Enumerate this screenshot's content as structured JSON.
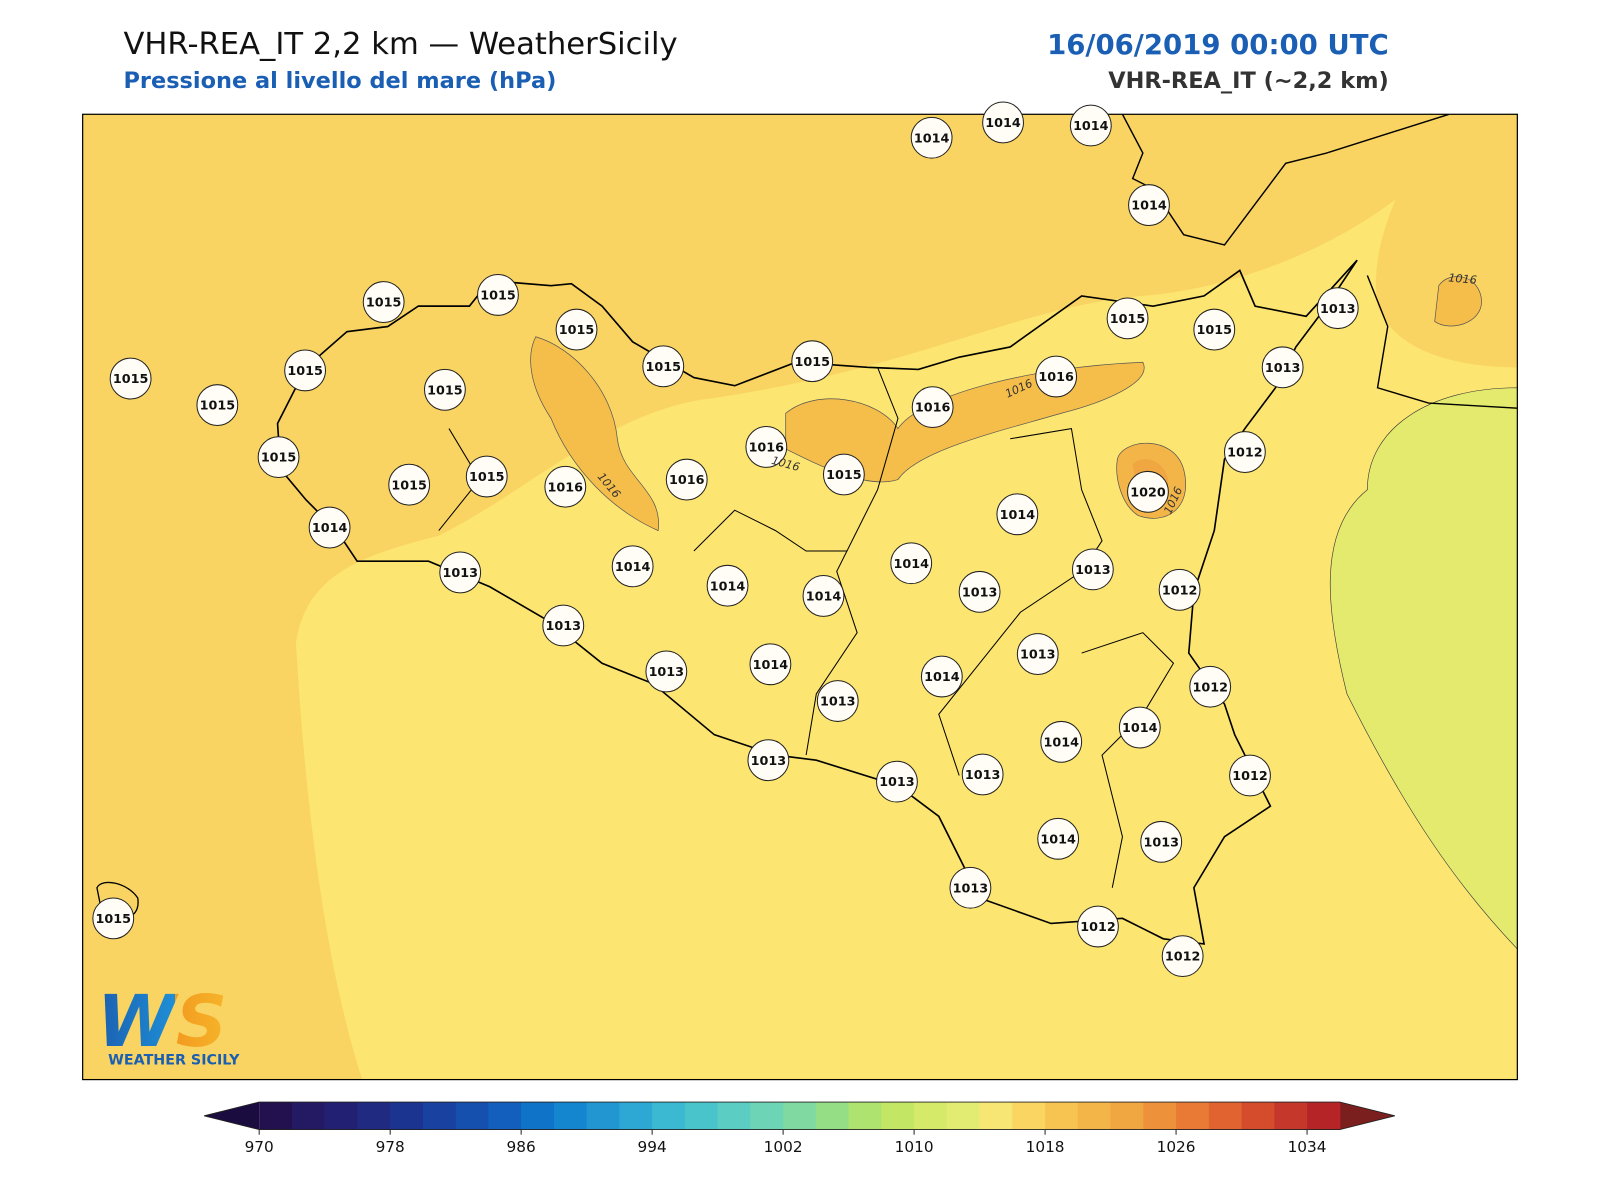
{
  "header": {
    "title": "VHR-REA_IT 2,2 km — WeatherSicily",
    "subtitle": "Pressione al livello del mare (hPa)",
    "date": "16/06/2019 00:00 UTC",
    "model": "VHR-REA_IT (~2,2 km)"
  },
  "stations": [
    1014,
    1014,
    1014,
    1014,
    1015,
    1015,
    1015,
    1015,
    1015,
    1015,
    1015,
    1013,
    1013,
    1015,
    1015,
    1015,
    1015,
    1015,
    1015,
    1015,
    1016,
    1016,
    1016,
    1015,
    1016,
    1016,
    1012,
    1020,
    1014,
    1014,
    1013,
    1014,
    1014,
    1014,
    1014,
    1013,
    1013,
    1012,
    1013,
    1013,
    1014,
    1013,
    1014,
    1013,
    1012,
    1014,
    1014,
    1012,
    1013,
    1013,
    1013,
    1014,
    1013,
    1013,
    1012,
    1012,
    1015
  ],
  "contour_labels": [
    "1016",
    "1016",
    "1016",
    "1016",
    "1016"
  ],
  "logo": {
    "mark": "WS",
    "text": "WEATHER SICILY"
  },
  "colorbar": {
    "range": [
      970,
      1036
    ],
    "ticks": [
      970,
      978,
      986,
      994,
      1002,
      1010,
      1018,
      1026,
      1034
    ],
    "colors": [
      "#23104f",
      "#241a63",
      "#222073",
      "#1f2a80",
      "#1b3490",
      "#1841a0",
      "#1550ae",
      "#125fbe",
      "#0f73c8",
      "#1486cf",
      "#2196d1",
      "#2da8d4",
      "#3bb9d2",
      "#4ac4cb",
      "#5bcdc2",
      "#6dd4b5",
      "#80d9a0",
      "#96de86",
      "#aee36f",
      "#c3e665",
      "#d6ea6a",
      "#e3ec72",
      "#f8e674",
      "#fbd561",
      "#f7c451",
      "#f3b548",
      "#f0a641",
      "#ed913b",
      "#e87a35",
      "#e1632f",
      "#d54c2c",
      "#c5372a",
      "#b52527"
    ],
    "under_color": "#1a0c3e",
    "over_color": "#7a1e1e"
  }
}
